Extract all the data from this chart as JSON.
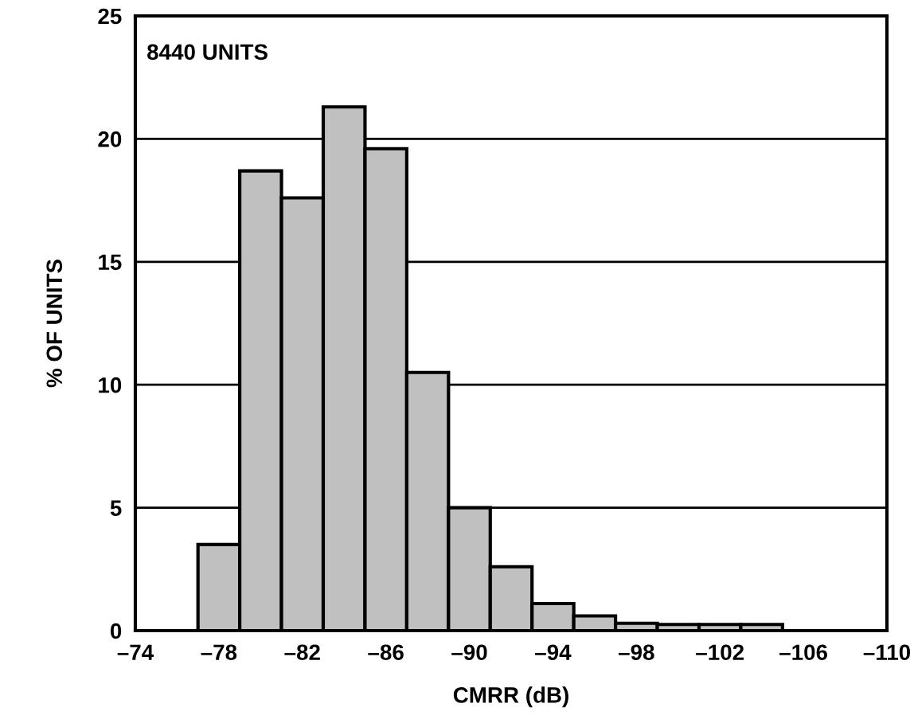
{
  "chart_data": {
    "type": "histogram",
    "xlabel": "CMRR (dB)",
    "ylabel": "% OF UNITS",
    "annotations": [
      "8440 UNITS"
    ],
    "bins": [
      -77,
      -79,
      -81,
      -83,
      -85,
      -87,
      -89,
      -91,
      -93,
      -95,
      -97,
      -99,
      -101,
      -103,
      -105
    ],
    "values": [
      3.5,
      18.7,
      17.6,
      21.3,
      19.6,
      10.5,
      5.0,
      2.6,
      1.1,
      0.6,
      0.3,
      0.25,
      0.25,
      0.25
    ],
    "color": "#c0c0c0",
    "xlim": [
      -74,
      -110
    ],
    "xticks": [
      {
        "value": -74,
        "label": "–74"
      },
      {
        "value": -78,
        "label": "–78"
      },
      {
        "value": -82,
        "label": "–82"
      },
      {
        "value": -86,
        "label": "–86"
      },
      {
        "value": -90,
        "label": "–90"
      },
      {
        "value": -94,
        "label": "–94"
      },
      {
        "value": -98,
        "label": "–98"
      },
      {
        "value": -102,
        "label": "–102"
      },
      {
        "value": -106,
        "label": "–106"
      },
      {
        "value": -110,
        "label": "–110"
      }
    ],
    "ylim": [
      0,
      25
    ],
    "yticks": [
      0,
      5,
      10,
      15,
      20,
      25
    ],
    "grid": "y"
  }
}
